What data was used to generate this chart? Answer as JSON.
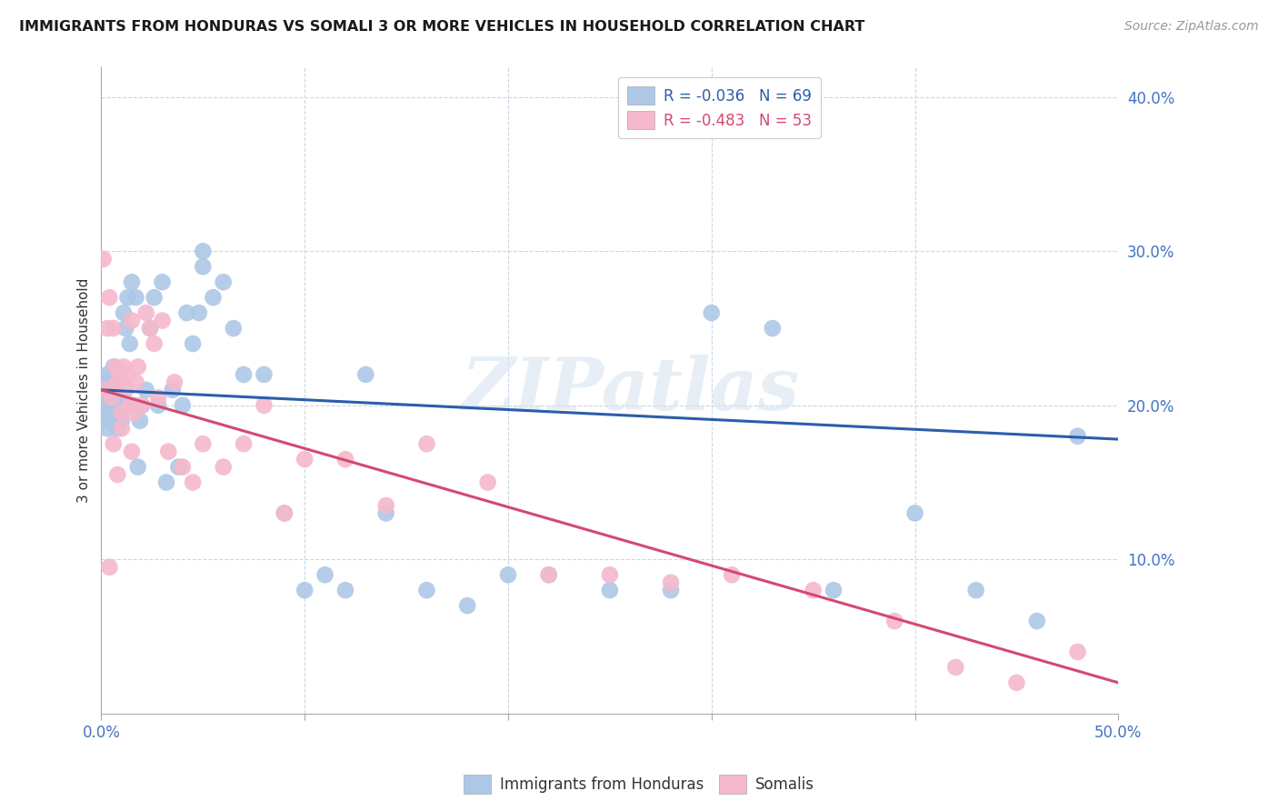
{
  "title": "IMMIGRANTS FROM HONDURAS VS SOMALI 3 OR MORE VEHICLES IN HOUSEHOLD CORRELATION CHART",
  "source": "Source: ZipAtlas.com",
  "ylabel": "3 or more Vehicles in Household",
  "xlim": [
    0.0,
    0.5
  ],
  "ylim": [
    0.0,
    0.42
  ],
  "ytick_vals": [
    0.1,
    0.2,
    0.3,
    0.4
  ],
  "ytick_labels": [
    "10.0%",
    "20.0%",
    "30.0%",
    "40.0%"
  ],
  "grid_ytick_vals": [
    0.1,
    0.2,
    0.3,
    0.4
  ],
  "xtick_inner_vals": [
    0.1,
    0.2,
    0.3,
    0.4
  ],
  "watermark_text": "ZIPatlas",
  "blue_color": "#adc8e6",
  "pink_color": "#f5b8cc",
  "blue_line_color": "#2b5dab",
  "pink_line_color": "#d4496e",
  "legend1_text": "R = -0.036   N = 69",
  "legend2_text": "R = -0.483   N = 53",
  "legend1_color": "#2b5dab",
  "legend2_color": "#d4496e",
  "bottom_legend1": "Immigrants from Honduras",
  "bottom_legend2": "Somalis",
  "blue_line_y0": 0.21,
  "blue_line_y1": 0.178,
  "pink_line_y0": 0.21,
  "pink_line_y1": 0.02,
  "honduras_x": [
    0.001,
    0.001,
    0.001,
    0.002,
    0.002,
    0.003,
    0.003,
    0.004,
    0.004,
    0.005,
    0.005,
    0.006,
    0.006,
    0.007,
    0.007,
    0.008,
    0.008,
    0.009,
    0.009,
    0.01,
    0.01,
    0.011,
    0.012,
    0.013,
    0.014,
    0.015,
    0.016,
    0.017,
    0.018,
    0.019,
    0.02,
    0.022,
    0.024,
    0.026,
    0.028,
    0.03,
    0.032,
    0.035,
    0.038,
    0.04,
    0.042,
    0.045,
    0.048,
    0.05,
    0.055,
    0.06,
    0.065,
    0.07,
    0.08,
    0.09,
    0.1,
    0.11,
    0.12,
    0.13,
    0.14,
    0.16,
    0.18,
    0.2,
    0.22,
    0.25,
    0.28,
    0.3,
    0.33,
    0.36,
    0.4,
    0.43,
    0.46,
    0.48,
    0.05
  ],
  "honduras_y": [
    0.21,
    0.195,
    0.19,
    0.215,
    0.2,
    0.22,
    0.185,
    0.205,
    0.195,
    0.215,
    0.19,
    0.225,
    0.2,
    0.21,
    0.195,
    0.22,
    0.185,
    0.2,
    0.215,
    0.19,
    0.205,
    0.26,
    0.25,
    0.27,
    0.24,
    0.28,
    0.2,
    0.27,
    0.16,
    0.19,
    0.2,
    0.21,
    0.25,
    0.27,
    0.2,
    0.28,
    0.15,
    0.21,
    0.16,
    0.2,
    0.26,
    0.24,
    0.26,
    0.3,
    0.27,
    0.28,
    0.25,
    0.22,
    0.22,
    0.13,
    0.08,
    0.09,
    0.08,
    0.22,
    0.13,
    0.08,
    0.07,
    0.09,
    0.09,
    0.08,
    0.08,
    0.26,
    0.25,
    0.08,
    0.13,
    0.08,
    0.06,
    0.18,
    0.29
  ],
  "somali_x": [
    0.001,
    0.002,
    0.003,
    0.004,
    0.005,
    0.006,
    0.007,
    0.008,
    0.009,
    0.01,
    0.011,
    0.012,
    0.013,
    0.014,
    0.015,
    0.016,
    0.017,
    0.018,
    0.019,
    0.02,
    0.022,
    0.024,
    0.026,
    0.028,
    0.03,
    0.033,
    0.036,
    0.04,
    0.045,
    0.05,
    0.06,
    0.07,
    0.08,
    0.09,
    0.1,
    0.12,
    0.14,
    0.16,
    0.19,
    0.22,
    0.25,
    0.28,
    0.31,
    0.35,
    0.39,
    0.42,
    0.45,
    0.48,
    0.015,
    0.01,
    0.008,
    0.006,
    0.004
  ],
  "somali_y": [
    0.295,
    0.21,
    0.25,
    0.27,
    0.205,
    0.25,
    0.225,
    0.215,
    0.22,
    0.195,
    0.225,
    0.21,
    0.22,
    0.2,
    0.255,
    0.195,
    0.215,
    0.225,
    0.2,
    0.2,
    0.26,
    0.25,
    0.24,
    0.205,
    0.255,
    0.17,
    0.215,
    0.16,
    0.15,
    0.175,
    0.16,
    0.175,
    0.2,
    0.13,
    0.165,
    0.165,
    0.135,
    0.175,
    0.15,
    0.09,
    0.09,
    0.085,
    0.09,
    0.08,
    0.06,
    0.03,
    0.02,
    0.04,
    0.17,
    0.185,
    0.155,
    0.175,
    0.095
  ]
}
